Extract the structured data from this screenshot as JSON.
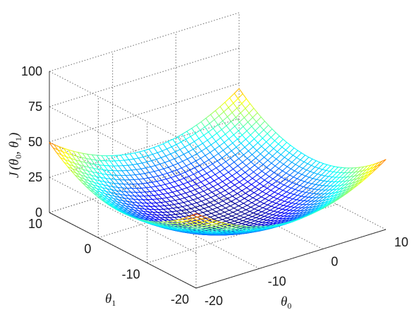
{
  "chart_data": {
    "type": "surface",
    "title": "",
    "xlabel": "θ",
    "xlabel_subscript": "0",
    "ylabel": "θ",
    "ylabel_subscript": "1",
    "zlabel_func": "J",
    "zlabel_args": [
      "θ",
      "0",
      "θ",
      "1"
    ],
    "xlim": [
      -20,
      10
    ],
    "ylim": [
      -20,
      10
    ],
    "zlim": [
      0,
      100
    ],
    "x_ticks": [
      "-20",
      "-10",
      "0",
      "10"
    ],
    "x_tick_values": [
      -20,
      -10,
      0,
      10
    ],
    "y_ticks": [
      "-20",
      "-10",
      "0",
      "10"
    ],
    "y_tick_values": [
      -20,
      -10,
      0,
      10
    ],
    "z_ticks": [
      "0",
      "25",
      "50",
      "75",
      "100"
    ],
    "z_tick_values": [
      0,
      25,
      50,
      75,
      100
    ],
    "surface": {
      "function": "J = 0.11*((theta0 + 4.5)^2 + (theta1 + 4.5)^2)",
      "theta0_range": [
        -20,
        10
      ],
      "theta1_range": [
        -20,
        10
      ],
      "grid_lines": 40,
      "colormap": "jet"
    },
    "grid": true
  }
}
